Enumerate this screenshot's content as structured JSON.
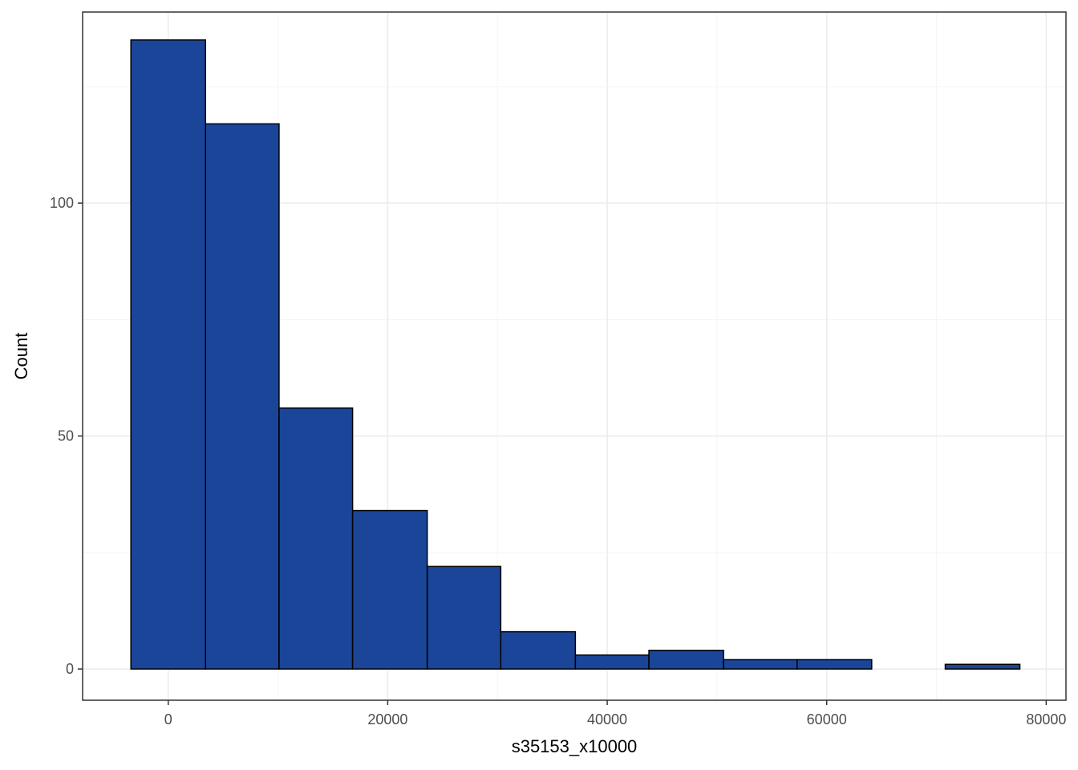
{
  "chart_data": {
    "type": "bar",
    "subtype": "histogram",
    "xlabel": "s35153_x10000",
    "ylabel": "Count",
    "xlim": [
      -7800,
      81800
    ],
    "ylim": [
      -6.7,
      141
    ],
    "x_ticks": [
      0,
      20000,
      40000,
      60000,
      80000
    ],
    "x_tick_labels": [
      "0",
      "20000",
      "40000",
      "60000",
      "80000"
    ],
    "y_ticks": [
      0,
      50,
      100
    ],
    "y_tick_labels": [
      "0",
      "50",
      "100"
    ],
    "y_minor_ticks": [
      25,
      75,
      125
    ],
    "x_minor_ticks": [
      10000,
      30000,
      50000,
      70000
    ],
    "bins": [
      {
        "x0": -3400,
        "x1": 3400,
        "count": 135
      },
      {
        "x0": 3400,
        "x1": 10100,
        "count": 117
      },
      {
        "x0": 10100,
        "x1": 16800,
        "count": 56
      },
      {
        "x0": 16800,
        "x1": 23600,
        "count": 34
      },
      {
        "x0": 23600,
        "x1": 30300,
        "count": 22
      },
      {
        "x0": 30300,
        "x1": 37100,
        "count": 8
      },
      {
        "x0": 37100,
        "x1": 43800,
        "count": 3
      },
      {
        "x0": 43800,
        "x1": 50600,
        "count": 4
      },
      {
        "x0": 50600,
        "x1": 57300,
        "count": 2
      },
      {
        "x0": 57300,
        "x1": 64100,
        "count": 2
      },
      {
        "x0": 64100,
        "x1": 70800,
        "count": 0
      },
      {
        "x0": 70800,
        "x1": 77600,
        "count": 1
      }
    ],
    "colors": {
      "bar_fill": "#1a4599",
      "bar_stroke": "#000000",
      "grid_major": "#ebebeb",
      "grid_minor": "#f5f5f5",
      "panel_border": "#333333"
    },
    "grid": true,
    "legend": "none"
  }
}
